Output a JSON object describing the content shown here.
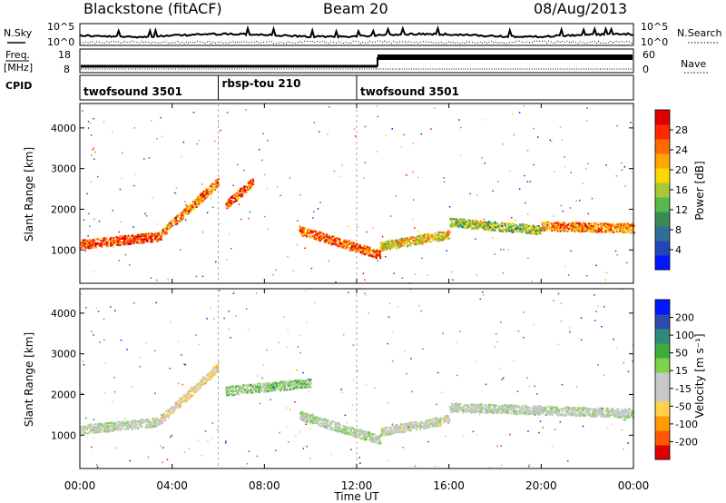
{
  "header": {
    "station": "Blackstone (fitACF)",
    "beam": "Beam 20",
    "date": "08/Aug/2013"
  },
  "noise_panel": {
    "left_label": "N.Sky",
    "right_label": "N.Search",
    "left_ticks": [
      "10^5",
      "10^0"
    ],
    "right_ticks": [
      "10^5",
      "10^0"
    ]
  },
  "freq_panel": {
    "left_label_line1": "Freq.",
    "left_label_line2": "[MHz]",
    "right_label": "Nave",
    "left_ticks": [
      "18",
      "8"
    ],
    "right_ticks": [
      "60",
      "0"
    ]
  },
  "cpid": {
    "label": "CPID",
    "segments": [
      {
        "name": "twofsound 3501",
        "start_hour": 0,
        "end_hour": 6
      },
      {
        "name": "rbsp-tou 210",
        "start_hour": 6,
        "end_hour": 12
      },
      {
        "name": "twofsound 3501",
        "start_hour": 12,
        "end_hour": 24
      }
    ]
  },
  "power_panel": {
    "ylabel": "Slant Range [km]",
    "yticks": [
      "1000",
      "2000",
      "3000",
      "4000"
    ],
    "colorbar_label": "Power [dB]",
    "colorbar_ticks": [
      "28",
      "24",
      "20",
      "16",
      "12",
      "8",
      "4"
    ]
  },
  "velocity_panel": {
    "ylabel": "Slant Range [km]",
    "yticks": [
      "1000",
      "2000",
      "3000",
      "4000"
    ],
    "colorbar_label": "Velocity [m s⁻¹]",
    "colorbar_ticks": [
      "200",
      "100",
      "50",
      "15",
      "-15",
      "-50",
      "-100",
      "-200"
    ]
  },
  "xaxis": {
    "label": "Time UT",
    "ticks": [
      "00:00",
      "04:00",
      "08:00",
      "12:00",
      "16:00",
      "20:00",
      "00:00"
    ]
  },
  "chart_data": [
    {
      "type": "heatmap",
      "title": "Blackstone (fitACF)  Beam 20  08/Aug/2013",
      "xlabel": "Time UT",
      "ylabel": "Slant Range [km]",
      "xlim_hours": [
        0,
        24
      ],
      "ylim_km": [
        180,
        4600
      ],
      "value_label": "Power [dB]",
      "value_range": [
        0,
        30
      ],
      "scatter_bands": [
        {
          "t_start": 0.0,
          "t_end": 3.5,
          "range_start": 1150,
          "range_end": 1350,
          "power": 26
        },
        {
          "t_start": 3.5,
          "t_end": 6.0,
          "range_start": 1400,
          "range_end": 2700,
          "power": 22
        },
        {
          "t_start": 6.3,
          "t_end": 7.5,
          "range_start": 2100,
          "range_end": 2700,
          "power": 24
        },
        {
          "t_start": 9.5,
          "t_end": 13.0,
          "range_start": 1500,
          "range_end": 900,
          "power": 24
        },
        {
          "t_start": 13.0,
          "t_end": 16.0,
          "range_start": 1100,
          "range_end": 1400,
          "power": 18
        },
        {
          "t_start": 16.0,
          "t_end": 20.0,
          "range_start": 1700,
          "range_end": 1500,
          "power": 14
        },
        {
          "t_start": 20.0,
          "t_end": 24.0,
          "range_start": 1600,
          "range_end": 1550,
          "power": 22
        }
      ],
      "grid": false
    },
    {
      "type": "heatmap",
      "xlabel": "Time UT",
      "ylabel": "Slant Range [km]",
      "xlim_hours": [
        0,
        24
      ],
      "ylim_km": [
        180,
        4600
      ],
      "value_label": "Velocity [m s⁻¹]",
      "value_range": [
        -250,
        250
      ],
      "scatter_bands": [
        {
          "t_start": 0.0,
          "t_end": 3.5,
          "range_start": 1150,
          "range_end": 1350,
          "velocity": -10
        },
        {
          "t_start": 3.5,
          "t_end": 6.0,
          "range_start": 1400,
          "range_end": 2700,
          "velocity": -60
        },
        {
          "t_start": 6.3,
          "t_end": 10.0,
          "range_start": 2100,
          "range_end": 2300,
          "velocity": 40
        },
        {
          "t_start": 9.5,
          "t_end": 13.0,
          "range_start": 1500,
          "range_end": 900,
          "velocity": 10
        },
        {
          "t_start": 13.0,
          "t_end": 16.0,
          "range_start": 1100,
          "range_end": 1400,
          "velocity": -20
        },
        {
          "t_start": 16.0,
          "t_end": 24.0,
          "range_start": 1700,
          "range_end": 1550,
          "velocity": -5
        }
      ],
      "grid": false
    }
  ],
  "colors": {
    "power_scale": [
      "#0018ff",
      "#1f47b8",
      "#2e6e9a",
      "#3b8a56",
      "#55b84a",
      "#a8c83a",
      "#ffd700",
      "#ffa500",
      "#ff6a00",
      "#ff2a00",
      "#e00000"
    ],
    "velocity_scale": [
      "#e00000",
      "#ff5a00",
      "#ff9a00",
      "#ffd24a",
      "#c8c8c8",
      "#c8c8c8",
      "#7fd24a",
      "#3fae38",
      "#2e8a7a",
      "#2d4bb0",
      "#0018ff"
    ]
  }
}
